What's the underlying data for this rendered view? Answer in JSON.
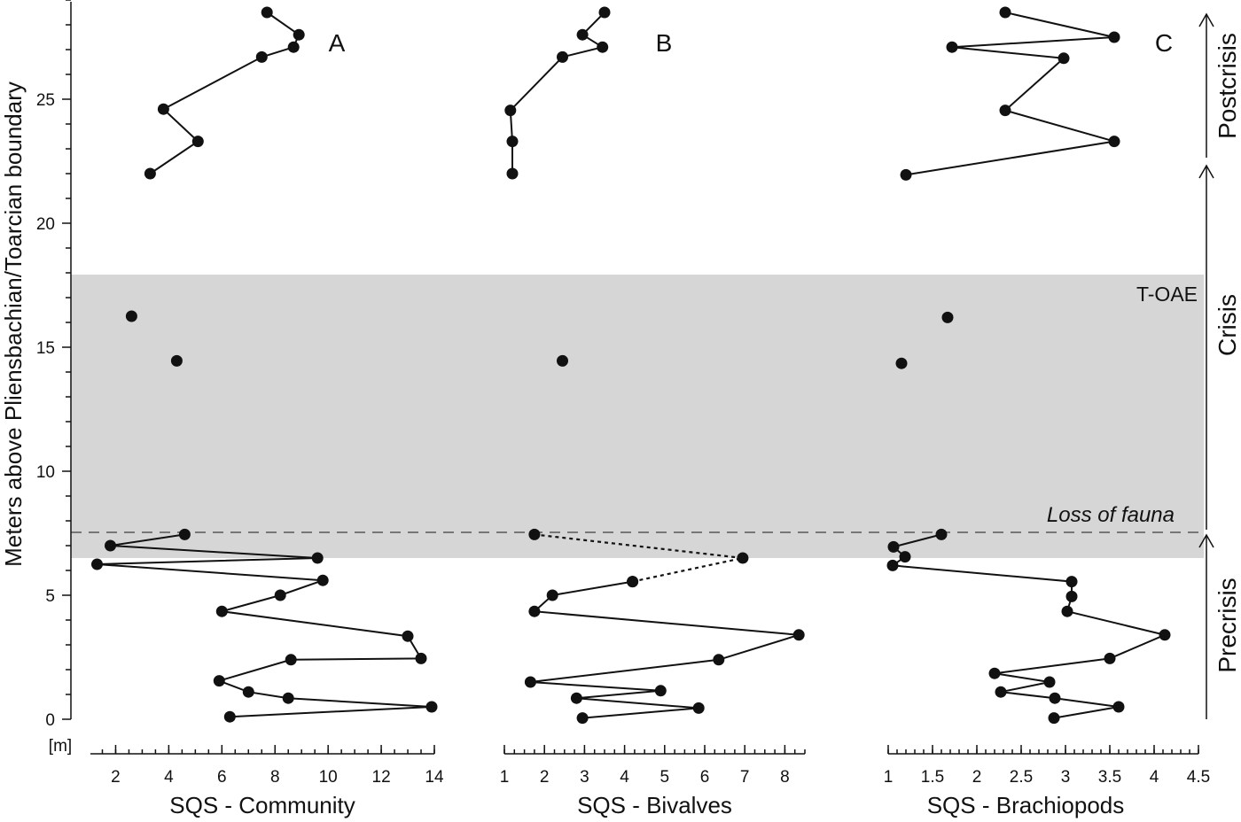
{
  "figure": {
    "ylabel": "Meters above Pliensbachian/Toarcian boundary",
    "yunit_label": "[m]",
    "band_label": "T-OAE",
    "loss_label": "Loss of fauna",
    "phases": [
      "Postcrisis",
      "Crisis",
      "Precrisis"
    ],
    "colors": {
      "band": "#d6d6d6",
      "points": "#111111",
      "loss_line": "#777777"
    }
  },
  "chart_data": [
    {
      "type": "line",
      "panel": "A",
      "xlabel": "SQS - Community",
      "ylabel": "Meters above Pliensbachian/Toarcian boundary",
      "xticks": [
        2,
        4,
        6,
        8,
        10,
        12,
        14
      ],
      "xlim": [
        1,
        14
      ],
      "yticks": [
        0,
        5,
        10,
        15,
        20,
        25
      ],
      "ylim": [
        0,
        29
      ],
      "band": {
        "label": "T-OAE",
        "y": [
          6.5,
          18
        ]
      },
      "loss_of_fauna_y": 7.5,
      "segments": [
        {
          "style": "solid",
          "points": [
            [
              6.3,
              0.1
            ],
            [
              13.9,
              0.5
            ],
            [
              8.5,
              0.85
            ],
            [
              7.0,
              1.1
            ],
            [
              5.9,
              1.55
            ],
            [
              8.6,
              2.4
            ],
            [
              13.5,
              2.45
            ],
            [
              13.0,
              3.35
            ],
            [
              6.0,
              4.35
            ],
            [
              8.2,
              5.0
            ],
            [
              9.8,
              5.6
            ],
            [
              1.3,
              6.25
            ],
            [
              9.6,
              6.5
            ],
            [
              1.8,
              7.0
            ],
            [
              4.6,
              7.45
            ]
          ]
        },
        {
          "style": "points",
          "points": [
            [
              4.3,
              14.45
            ],
            [
              2.6,
              16.25
            ]
          ]
        },
        {
          "style": "solid",
          "points": [
            [
              3.3,
              22.0
            ],
            [
              5.1,
              23.3
            ],
            [
              3.8,
              24.6
            ],
            [
              7.5,
              26.7
            ],
            [
              8.7,
              27.1
            ],
            [
              8.9,
              27.6
            ],
            [
              7.7,
              28.5
            ]
          ]
        }
      ]
    },
    {
      "type": "line",
      "panel": "B",
      "xlabel": "SQS - Bivalves",
      "xticks": [
        1,
        2,
        3,
        4,
        5,
        6,
        7,
        8
      ],
      "xlim": [
        1,
        8.5
      ],
      "band": {
        "label": "T-OAE",
        "y": [
          6.5,
          18
        ]
      },
      "loss_of_fauna_y": 7.5,
      "segments": [
        {
          "style": "solid",
          "points": [
            [
              2.95,
              0.05
            ],
            [
              5.85,
              0.45
            ],
            [
              2.8,
              0.85
            ],
            [
              4.9,
              1.15
            ],
            [
              1.65,
              1.5
            ],
            [
              6.35,
              2.4
            ],
            [
              8.35,
              3.4
            ],
            [
              1.75,
              4.35
            ],
            [
              2.2,
              5.0
            ],
            [
              4.2,
              5.55
            ]
          ]
        },
        {
          "style": "dashed",
          "points": [
            [
              4.2,
              5.55
            ],
            [
              6.95,
              6.5
            ],
            [
              1.75,
              7.45
            ]
          ]
        },
        {
          "style": "points",
          "points": [
            [
              2.45,
              14.45
            ]
          ]
        },
        {
          "style": "solid",
          "points": [
            [
              1.2,
              22.0
            ],
            [
              1.2,
              23.3
            ],
            [
              1.15,
              24.55
            ],
            [
              2.45,
              26.7
            ],
            [
              3.45,
              27.1
            ],
            [
              2.95,
              27.6
            ],
            [
              3.5,
              28.5
            ]
          ]
        }
      ]
    },
    {
      "type": "line",
      "panel": "C",
      "xlabel": "SQS - Brachiopods",
      "xticks": [
        1,
        1.5,
        2,
        2.5,
        3,
        3.5,
        4,
        4.5
      ],
      "xlim": [
        1,
        4.5
      ],
      "band": {
        "label": "T-OAE",
        "y": [
          6.5,
          18
        ]
      },
      "loss_of_fauna_y": 7.5,
      "segments": [
        {
          "style": "solid",
          "points": [
            [
              2.87,
              0.05
            ],
            [
              3.6,
              0.5
            ],
            [
              2.88,
              0.85
            ],
            [
              2.27,
              1.1
            ],
            [
              2.82,
              1.5
            ],
            [
              2.2,
              1.85
            ],
            [
              3.5,
              2.45
            ],
            [
              4.12,
              3.4
            ],
            [
              3.02,
              4.35
            ],
            [
              3.07,
              4.95
            ],
            [
              3.07,
              5.55
            ],
            [
              1.05,
              6.2
            ],
            [
              1.19,
              6.55
            ],
            [
              1.06,
              6.95
            ],
            [
              1.6,
              7.45
            ]
          ]
        },
        {
          "style": "points",
          "points": [
            [
              1.15,
              14.35
            ],
            [
              1.67,
              16.2
            ]
          ]
        },
        {
          "style": "solid",
          "points": [
            [
              1.2,
              21.95
            ],
            [
              3.55,
              23.3
            ],
            [
              2.32,
              24.55
            ],
            [
              2.98,
              26.65
            ],
            [
              1.72,
              27.1
            ],
            [
              3.55,
              27.5
            ],
            [
              2.32,
              28.5
            ]
          ]
        }
      ]
    }
  ]
}
